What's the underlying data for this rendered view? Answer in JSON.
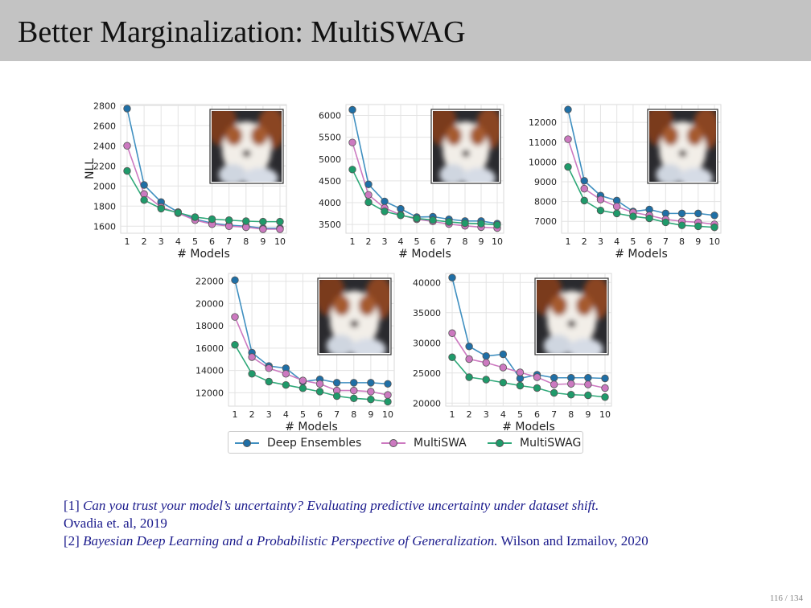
{
  "slide": {
    "title": "Better Marginalization: MultiSWAG",
    "page_number": "116 / 134"
  },
  "legend": {
    "items": [
      {
        "label": "Deep Ensembles",
        "color": "#1f6fa6",
        "line_color": "#3f8fc0"
      },
      {
        "label": "MultiSWA",
        "color": "#cc79c0",
        "line_color": "#cc79c0"
      },
      {
        "label": "MultiSWAG",
        "color": "#1f9a6a",
        "line_color": "#2ea878"
      }
    ]
  },
  "references": {
    "ref1_num": "[1]",
    "ref1_title": "Can you trust your model’s uncertainty? Evaluating predictive uncertainty under dataset shift.",
    "ref1_authors": "Ovadia et. al, 2019",
    "ref2_num": "[2]",
    "ref2_title": "Bayesian Deep Learning and a Probabilistic Perspective of Generalization.",
    "ref2_authors": "Wilson and Izmailov, 2020"
  },
  "chart_data": [
    {
      "type": "line",
      "xlabel": "# Models",
      "ylabel": "NLL",
      "x": [
        1,
        2,
        3,
        4,
        5,
        6,
        7,
        8,
        9,
        10
      ],
      "yticks": [
        1600,
        1800,
        2000,
        2200,
        2400,
        2600,
        2800
      ],
      "ylim": [
        1530,
        2810
      ],
      "inset": "image",
      "series": [
        {
          "name": "Deep Ensembles",
          "values": [
            2770,
            2010,
            1840,
            1740,
            1670,
            1630,
            1610,
            1600,
            1580,
            1580
          ]
        },
        {
          "name": "MultiSWA",
          "values": [
            2400,
            1920,
            1790,
            1730,
            1660,
            1620,
            1600,
            1590,
            1570,
            1570
          ]
        },
        {
          "name": "MultiSWAG",
          "values": [
            2150,
            1860,
            1775,
            1735,
            1690,
            1670,
            1660,
            1650,
            1645,
            1645
          ]
        }
      ]
    },
    {
      "type": "line",
      "xlabel": "# Models",
      "ylabel": "",
      "x": [
        1,
        2,
        3,
        4,
        5,
        6,
        7,
        8,
        9,
        10
      ],
      "yticks": [
        3500,
        4000,
        4500,
        5000,
        5500,
        6000
      ],
      "ylim": [
        3300,
        6250
      ],
      "inset": "image",
      "series": [
        {
          "name": "Deep Ensembles",
          "values": [
            6130,
            4420,
            4030,
            3860,
            3670,
            3680,
            3620,
            3580,
            3580,
            3520
          ]
        },
        {
          "name": "MultiSWA",
          "values": [
            5380,
            4180,
            3880,
            3720,
            3620,
            3570,
            3510,
            3470,
            3440,
            3420
          ]
        },
        {
          "name": "MultiSWAG",
          "values": [
            4760,
            4010,
            3800,
            3710,
            3640,
            3600,
            3560,
            3530,
            3520,
            3490
          ]
        }
      ]
    },
    {
      "type": "line",
      "xlabel": "# Models",
      "ylabel": "",
      "x": [
        1,
        2,
        3,
        4,
        5,
        6,
        7,
        8,
        9,
        10
      ],
      "yticks": [
        7000,
        8000,
        9000,
        10000,
        11000,
        12000
      ],
      "ylim": [
        6400,
        12900
      ],
      "inset": "image",
      "series": [
        {
          "name": "Deep Ensembles",
          "values": [
            12650,
            9050,
            8300,
            8050,
            7500,
            7600,
            7400,
            7400,
            7400,
            7300
          ]
        },
        {
          "name": "MultiSWA",
          "values": [
            11150,
            8650,
            8100,
            7750,
            7450,
            7300,
            7100,
            7000,
            6950,
            6850
          ]
        },
        {
          "name": "MultiSWAG",
          "values": [
            9750,
            8050,
            7550,
            7400,
            7250,
            7150,
            6950,
            6800,
            6750,
            6700
          ]
        }
      ]
    },
    {
      "type": "line",
      "xlabel": "# Models",
      "ylabel": "",
      "x": [
        1,
        2,
        3,
        4,
        5,
        6,
        7,
        8,
        9,
        10
      ],
      "yticks": [
        12000,
        14000,
        16000,
        18000,
        20000,
        22000
      ],
      "ylim": [
        10800,
        22700
      ],
      "inset": "image",
      "series": [
        {
          "name": "Deep Ensembles",
          "values": [
            22100,
            15600,
            14400,
            14200,
            13000,
            13200,
            12900,
            12900,
            12900,
            12800
          ]
        },
        {
          "name": "MultiSWA",
          "values": [
            18800,
            15200,
            14200,
            13700,
            13100,
            12800,
            12200,
            12200,
            12100,
            11800
          ]
        },
        {
          "name": "MultiSWAG",
          "values": [
            16300,
            13700,
            13000,
            12700,
            12400,
            12100,
            11700,
            11500,
            11400,
            11200
          ]
        }
      ]
    },
    {
      "type": "line",
      "xlabel": "# Models",
      "ylabel": "",
      "x": [
        1,
        2,
        3,
        4,
        5,
        6,
        7,
        8,
        9,
        10
      ],
      "yticks": [
        20000,
        25000,
        30000,
        35000,
        40000
      ],
      "ylim": [
        19500,
        41500
      ],
      "inset": "image",
      "series": [
        {
          "name": "Deep Ensembles",
          "values": [
            40800,
            29400,
            27800,
            28100,
            24100,
            24700,
            24200,
            24200,
            24200,
            24100
          ]
        },
        {
          "name": "MultiSWA",
          "values": [
            31600,
            27300,
            26700,
            25900,
            25100,
            24300,
            23100,
            23200,
            23100,
            22500
          ]
        },
        {
          "name": "MultiSWAG",
          "values": [
            27600,
            24300,
            23900,
            23400,
            22900,
            22500,
            21700,
            21400,
            21300,
            21000
          ]
        }
      ]
    }
  ]
}
